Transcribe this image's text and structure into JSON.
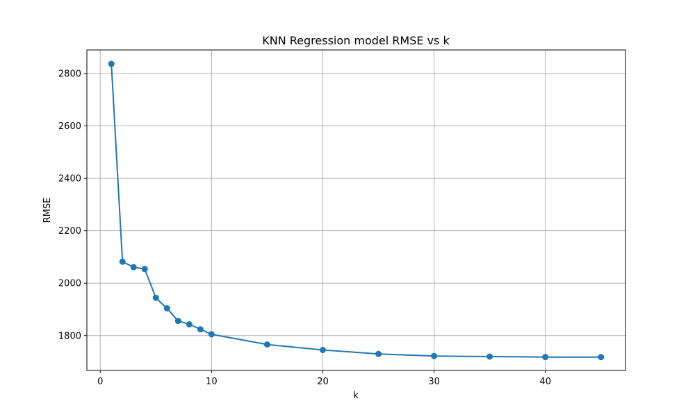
{
  "chart_data": {
    "type": "line",
    "title": "KNN Regression model RMSE vs k",
    "xlabel": "k",
    "ylabel": "RMSE",
    "xlim": [
      -1.2,
      47.2
    ],
    "ylim": [
      1667,
      2890
    ],
    "xticks": [
      0,
      10,
      20,
      30,
      40
    ],
    "yticks": [
      1800,
      2000,
      2200,
      2400,
      2600,
      2800
    ],
    "grid": true,
    "marker": "circle",
    "series": [
      {
        "color": "#1f77b4",
        "x": [
          1,
          2,
          3,
          4,
          5,
          6,
          7,
          8,
          9,
          10,
          15,
          20,
          25,
          30,
          35,
          40,
          45
        ],
        "y": [
          2837,
          2082,
          2061,
          2054,
          1944,
          1904,
          1856,
          1843,
          1824,
          1805,
          1766,
          1745,
          1730,
          1722,
          1720,
          1718,
          1718
        ]
      }
    ]
  }
}
